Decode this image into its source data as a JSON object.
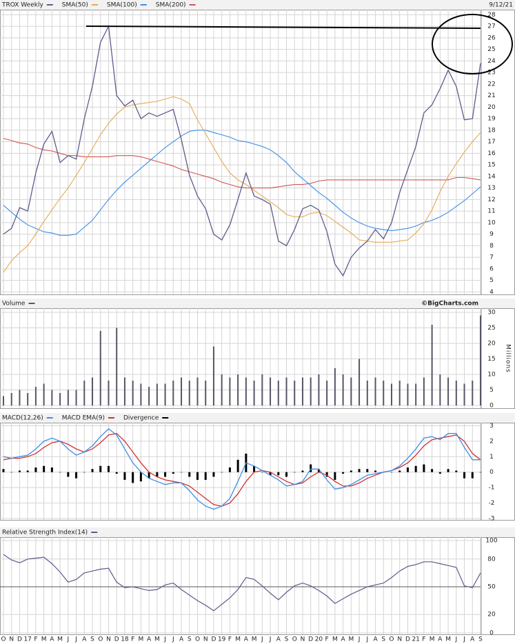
{
  "chart_data": [
    {
      "type": "line",
      "date": "9/12/21",
      "series": [
        {
          "name": "TROX Weekly",
          "color": "#5b5b8c",
          "values": [
            9,
            9.5,
            11.3,
            11,
            14.3,
            16.8,
            17.9,
            15.2,
            15.8,
            15.5,
            19,
            21.8,
            25.6,
            27,
            21,
            20.1,
            20.6,
            19,
            19.5,
            19.2,
            19.5,
            19.8,
            17.2,
            14.1,
            12.3,
            11.2,
            9,
            8.5,
            9.8,
            12,
            14.3,
            12.3,
            12,
            11.6,
            8.4,
            8,
            9.4,
            11.2,
            11.5,
            11.1,
            9.2,
            6.4,
            5.4,
            7,
            7.8,
            8.4,
            9.4,
            8.6,
            10,
            12.6,
            14.6,
            16.6,
            19.5,
            20.2,
            21.6,
            23.2,
            21.8,
            18.9,
            19,
            23.8
          ]
        },
        {
          "name": "SMA(50)",
          "color": "#e6a84f",
          "values": [
            5.7,
            6.7,
            7.4,
            8,
            9,
            10.1,
            11.1,
            12.1,
            13,
            14.1,
            15.2,
            16.4,
            17.6,
            18.6,
            19.4,
            20,
            20.2,
            20.3,
            20.4,
            20.5,
            20.7,
            20.9,
            20.7,
            20.3,
            18.9,
            17.7,
            16.5,
            15.3,
            14.3,
            13.7,
            13.3,
            12.8,
            12.3,
            11.8,
            11.3,
            10.7,
            10.5,
            10.5,
            10.8,
            10.9,
            10.6,
            10.1,
            9.6,
            9.1,
            8.5,
            8.4,
            8.3,
            8.3,
            8.3,
            8.4,
            8.5,
            9.1,
            9.9,
            11.1,
            12.7,
            14,
            15.1,
            16.1,
            17,
            17.8
          ]
        },
        {
          "name": "SMA(100)",
          "color": "#3b8de6",
          "values": [
            11.5,
            10.9,
            10.3,
            9.8,
            9.5,
            9.2,
            9.1,
            8.9,
            8.9,
            9,
            9.6,
            10.2,
            11.1,
            12,
            12.8,
            13.5,
            14.1,
            14.7,
            15.3,
            15.9,
            16.5,
            17,
            17.5,
            17.9,
            18,
            18,
            17.8,
            17.6,
            17.4,
            17.1,
            17,
            16.8,
            16.6,
            16.3,
            15.8,
            15.2,
            14.4,
            13.8,
            13.2,
            12.6,
            12.1,
            11.5,
            10.9,
            10.4,
            10,
            9.7,
            9.5,
            9.4,
            9.3,
            9.4,
            9.5,
            9.7,
            10,
            10.2,
            10.5,
            10.9,
            11.4,
            11.9,
            12.5,
            13.1
          ]
        },
        {
          "name": "SMA(200)",
          "color": "#d05555",
          "values": [
            17.3,
            17.1,
            16.9,
            16.8,
            16.5,
            16.3,
            16.2,
            16,
            15.8,
            15.8,
            15.7,
            15.7,
            15.7,
            15.7,
            15.8,
            15.8,
            15.8,
            15.7,
            15.5,
            15.3,
            15.1,
            14.9,
            14.6,
            14.4,
            14.2,
            14,
            13.8,
            13.5,
            13.3,
            13.1,
            13,
            13,
            13,
            13,
            13.1,
            13.2,
            13.3,
            13.3,
            13.4,
            13.6,
            13.7,
            13.7,
            13.7,
            13.7,
            13.7,
            13.7,
            13.7,
            13.7,
            13.7,
            13.7,
            13.7,
            13.7,
            13.7,
            13.7,
            13.7,
            13.7,
            13.9,
            13.9,
            13.8,
            13.7
          ]
        }
      ],
      "ylim": [
        3.9,
        28.2
      ],
      "yticks": [
        4,
        5,
        6,
        7,
        8,
        9,
        10,
        11,
        12,
        13,
        14,
        15,
        16,
        17,
        18,
        19,
        20,
        21,
        22,
        23,
        24,
        25,
        26,
        27,
        28
      ],
      "grid": true
    },
    {
      "type": "bar",
      "title": "Volume",
      "color": "#555566",
      "source": "©BigCharts.com",
      "ylabel": "Millions",
      "values": [
        3,
        4,
        5,
        4,
        6,
        7,
        5,
        4,
        5,
        5,
        8,
        9,
        24,
        8,
        25,
        9,
        8,
        7,
        6,
        7,
        7,
        8,
        9,
        8,
        9,
        8,
        19,
        10,
        9,
        10,
        9,
        8,
        10,
        9,
        8,
        9,
        8,
        9,
        9,
        10,
        8,
        12,
        10,
        9,
        15,
        8,
        9,
        8,
        7,
        8,
        7,
        7,
        9,
        26,
        10,
        9,
        8,
        7,
        8,
        29
      ],
      "ylim": [
        0,
        30
      ],
      "yticks": [
        0,
        5,
        10,
        15,
        20,
        25,
        30
      ],
      "grid": true
    },
    {
      "type": "macd",
      "series": [
        {
          "name": "MACD(12,26)",
          "color": "#3b8de6",
          "values": [
            1.0,
            0.9,
            1.0,
            1.1,
            1.5,
            2.0,
            2.2,
            2.0,
            1.5,
            1.1,
            1.3,
            1.7,
            2.3,
            2.8,
            2.4,
            1.5,
            0.6,
            0.0,
            -0.4,
            -0.6,
            -0.8,
            -0.7,
            -0.7,
            -1.2,
            -1.8,
            -2.2,
            -2.4,
            -2.2,
            -1.7,
            -0.6,
            0.6,
            0.4,
            0.1,
            -0.2,
            -0.5,
            -0.9,
            -0.8,
            -0.6,
            0.2,
            0.2,
            -0.5,
            -1.1,
            -1.0,
            -0.8,
            -0.5,
            -0.2,
            -0.1,
            0.0,
            0.1,
            0.4,
            0.9,
            1.5,
            2.2,
            2.3,
            2.1,
            2.5,
            2.5,
            1.6,
            0.8,
            0.8
          ]
        },
        {
          "name": "MACD EMA(9)",
          "color": "#d03030",
          "values": [
            0.8,
            0.9,
            0.9,
            1.0,
            1.2,
            1.6,
            1.9,
            2.0,
            1.8,
            1.5,
            1.3,
            1.5,
            1.9,
            2.4,
            2.5,
            2.0,
            1.3,
            0.6,
            0.0,
            -0.3,
            -0.5,
            -0.6,
            -0.7,
            -0.9,
            -1.3,
            -1.7,
            -2.1,
            -2.2,
            -2.0,
            -1.4,
            -0.6,
            0.0,
            0.1,
            0.0,
            -0.3,
            -0.6,
            -0.8,
            -0.7,
            -0.3,
            0.0,
            -0.2,
            -0.6,
            -0.9,
            -0.9,
            -0.7,
            -0.4,
            -0.2,
            0.0,
            0.1,
            0.3,
            0.6,
            1.1,
            1.7,
            2.1,
            2.2,
            2.3,
            2.4,
            2.0,
            1.2,
            0.8
          ]
        },
        {
          "name": "Divergence",
          "color": "#000000",
          "values": [
            0.2,
            0,
            0.1,
            0.1,
            0.3,
            0.4,
            0.3,
            0,
            -0.3,
            -0.4,
            0,
            0.2,
            0.4,
            0.4,
            -0.1,
            -0.5,
            -0.7,
            -0.6,
            -0.4,
            -0.3,
            -0.3,
            -0.1,
            0,
            -0.3,
            -0.5,
            -0.5,
            -0.3,
            0,
            0.3,
            0.8,
            1.2,
            0.4,
            0,
            -0.2,
            -0.2,
            -0.3,
            0,
            0.1,
            0.5,
            0.2,
            -0.3,
            -0.5,
            -0.1,
            0.1,
            0.2,
            0.2,
            0.1,
            0,
            0,
            0.1,
            0.3,
            0.4,
            0.5,
            0.2,
            -0.1,
            0.2,
            0.1,
            -0.4,
            -0.4,
            0
          ]
        }
      ],
      "ylim": [
        -3,
        3.2
      ],
      "yticks": [
        3,
        2,
        1,
        0,
        -1,
        -2,
        -3
      ],
      "grid": true
    },
    {
      "type": "line",
      "title": "Relative Strength Index(14)",
      "color": "#5b5b8c",
      "categories": [
        "O",
        "N",
        "D",
        "17",
        "F",
        "M",
        "A",
        "M",
        "J",
        "J",
        "A",
        "S",
        "O",
        "N",
        "D",
        "18",
        "F",
        "M",
        "A",
        "M",
        "J",
        "J",
        "A",
        "S",
        "O",
        "N",
        "D",
        "19",
        "F",
        "M",
        "A",
        "M",
        "J",
        "J",
        "A",
        "S",
        "O",
        "N",
        "D",
        "20",
        "F",
        "M",
        "A",
        "M",
        "J",
        "J",
        "A",
        "S",
        "O",
        "N",
        "D",
        "21",
        "F",
        "M",
        "A",
        "M",
        "J",
        "J",
        "A",
        "S"
      ],
      "values": [
        85,
        79,
        76,
        80,
        81,
        82,
        75,
        66,
        55,
        58,
        65,
        67,
        69,
        70,
        55,
        49,
        50,
        48,
        46,
        47,
        52,
        54,
        47,
        41,
        35,
        30,
        24,
        31,
        38,
        47,
        60,
        58,
        51,
        43,
        36,
        44,
        51,
        54,
        51,
        46,
        40,
        32,
        37,
        42,
        46,
        50,
        52,
        54,
        60,
        67,
        72,
        74,
        77,
        77,
        75,
        73,
        71,
        51,
        49,
        65
      ],
      "ylim": [
        0,
        100
      ],
      "yticks": [
        0,
        20,
        50,
        80,
        100
      ],
      "grid": true
    }
  ]
}
